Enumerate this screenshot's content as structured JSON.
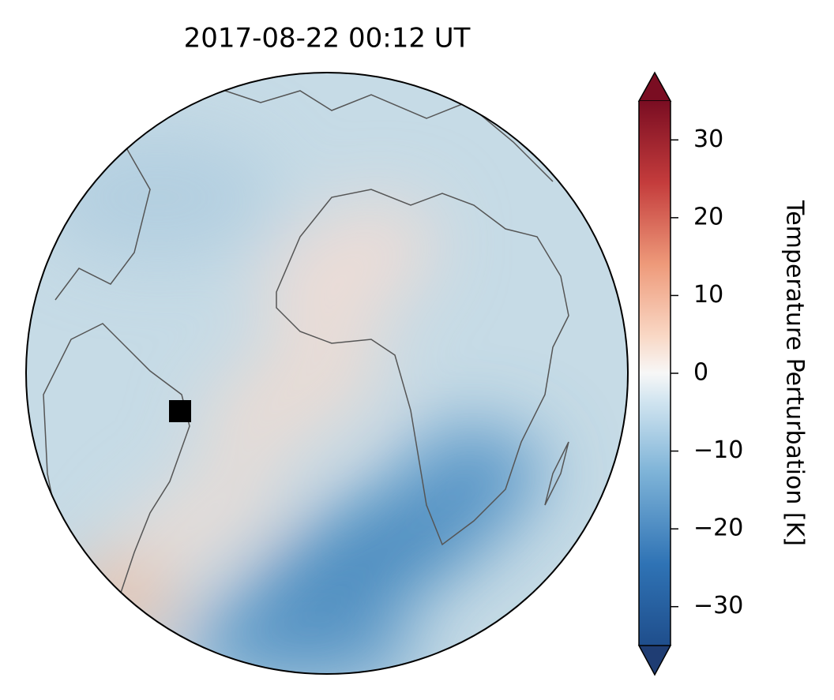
{
  "map": {
    "title": "2017-08-22  00:12 UT",
    "colorbar": {
      "label": "Temperature Perturbation [K]",
      "lim": [
        -35,
        35
      ],
      "ticks": [
        {
          "value": -30,
          "label": "−30"
        },
        {
          "value": -20,
          "label": "−20"
        },
        {
          "value": -10,
          "label": "−10"
        },
        0,
        10,
        20,
        30
      ]
    }
  }
}
